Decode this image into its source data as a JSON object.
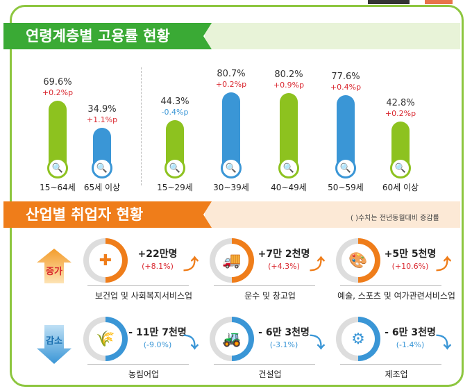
{
  "age_section": {
    "title": "연령계층별 고용률 현황",
    "groups": [
      {
        "label": "15~64세",
        "value": "69.6%",
        "change": "+0.2%p",
        "rate": 69.6,
        "color": "#8dc21f",
        "change_color": "#d9262e"
      },
      {
        "label": "65세 이상",
        "value": "34.9%",
        "change": "+1.1%p",
        "rate": 34.9,
        "color": "#3a96d6",
        "change_color": "#d9262e"
      },
      {
        "label": "15~29세",
        "value": "44.3%",
        "change": "-0.4%p",
        "rate": 44.3,
        "color": "#8dc21f",
        "change_color": "#3a96d6"
      },
      {
        "label": "30~39세",
        "value": "80.7%",
        "change": "+0.2%p",
        "rate": 80.7,
        "color": "#3a96d6",
        "change_color": "#d9262e"
      },
      {
        "label": "40~49세",
        "value": "80.2%",
        "change": "+0.9%p",
        "rate": 80.2,
        "color": "#8dc21f",
        "change_color": "#d9262e"
      },
      {
        "label": "50~59세",
        "value": "77.6%",
        "change": "+0.4%p",
        "rate": 77.6,
        "color": "#3a96d6",
        "change_color": "#d9262e"
      },
      {
        "label": "60세 이상",
        "value": "42.8%",
        "change": "+0.2%p",
        "rate": 42.8,
        "color": "#8dc21f",
        "change_color": "#d9262e"
      }
    ]
  },
  "industry_section": {
    "title": "산업별 취업자 현황",
    "note": "( )수치는 전년동월대비 증감률",
    "increase_label": "증가",
    "decrease_label": "감소",
    "increase": [
      {
        "name": "보건업 및 사회복지서비스업",
        "amount": "+22만명",
        "rate": "(+8.1%)",
        "icon": "medical-kit-icon"
      },
      {
        "name": "운수 및 창고업",
        "amount": "+7만 2천명",
        "rate": "(+4.3%)",
        "icon": "truck-icon"
      },
      {
        "name": "예술, 스포츠 및 여가관련서비스업",
        "amount": "+5만 5천명",
        "rate": "(+10.6%)",
        "icon": "palette-icon"
      }
    ],
    "decrease": [
      {
        "name": "농림어업",
        "amount": "- 11만 7천명",
        "rate": "(-9.0%)",
        "icon": "wheat-icon"
      },
      {
        "name": "건설업",
        "amount": "- 6만 3천명",
        "rate": "(-3.1%)",
        "icon": "excavator-icon"
      },
      {
        "name": "제조업",
        "amount": "- 6만 3천명",
        "rate": "(-1.4%)",
        "icon": "gear-icon"
      }
    ]
  },
  "colors": {
    "green": "#3aaa35",
    "orange": "#ef7d1a",
    "blue": "#3a96d6",
    "red": "#d9262e"
  }
}
